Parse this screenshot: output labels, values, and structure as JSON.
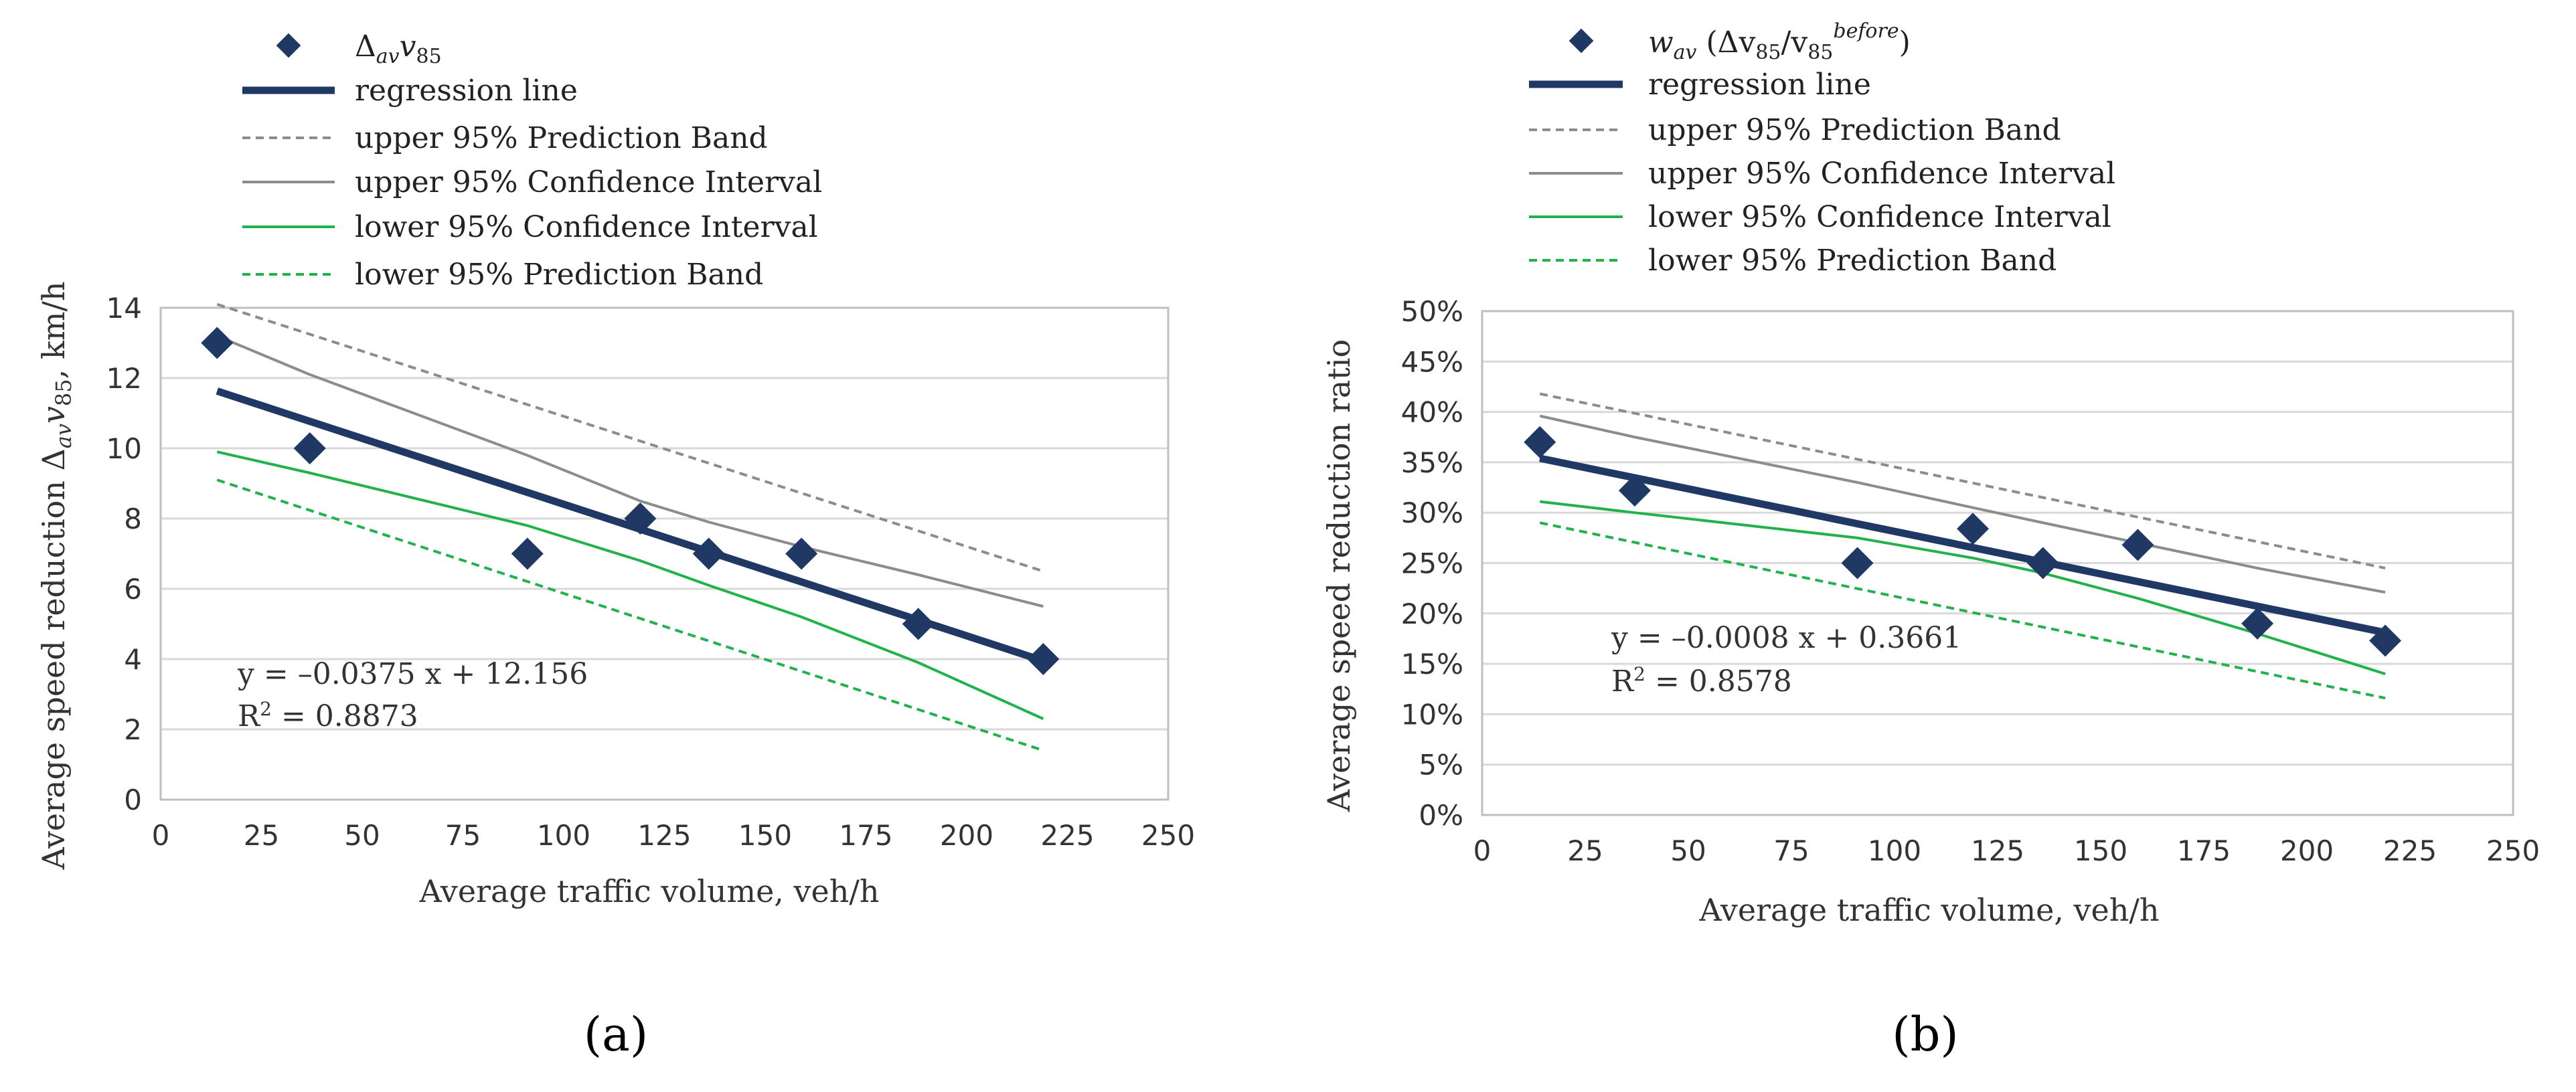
{
  "legend": {
    "a_series_main": "Δ",
    "a_series_sub": "av",
    "a_series_v": "v",
    "a_series_85": "85",
    "b_series_w": "w",
    "b_series_av": "av",
    "b_series_mid": " (Δv",
    "b_series_85a": "85",
    "b_series_slash": "/v",
    "b_series_85b": "85",
    "b_series_before": "before",
    "b_series_close": ")",
    "regression": "regression line",
    "upper_pb": "upper 95% Prediction Band",
    "upper_ci": "upper 95% Confidence Interval",
    "lower_ci": "lower 95% Confidence Interval",
    "lower_pb": "lower 95% Prediction Band"
  },
  "colors": {
    "points": "#1f3864",
    "regression": "#1f3864",
    "upper_pb": "#8c8c8c",
    "upper_ci": "#8c8c8c",
    "lower_ci": "#22b24c",
    "lower_pb": "#22b24c",
    "grid": "#d9d9d9",
    "axis": "#bfbfbf"
  },
  "chart_data": [
    {
      "type": "scatter",
      "panel_label": "(a)",
      "xlabel": "Average traffic volume, veh/h",
      "ylabel_pre": "Average speed reduction Δ",
      "ylabel_sub_av": "av",
      "ylabel_v": "v",
      "ylabel_sub_85": "85",
      "ylabel_post": ", km/h",
      "xlim": [
        0,
        250
      ],
      "ylim": [
        0,
        14
      ],
      "xticks": [
        "0",
        "25",
        "50",
        "75",
        "100",
        "125",
        "150",
        "175",
        "200",
        "225",
        "250"
      ],
      "yticks": [
        "0",
        "2",
        "4",
        "6",
        "8",
        "10",
        "12",
        "14"
      ],
      "x_tick_values": [
        0,
        25,
        50,
        75,
        100,
        125,
        150,
        175,
        200,
        225,
        250
      ],
      "y_tick_values": [
        0,
        2,
        4,
        6,
        8,
        10,
        12,
        14
      ],
      "equation": "y = –0.0375 x + 12.156",
      "r2_prefix": "R",
      "r2_sup": "2",
      "r2_value": " = 0.8873",
      "points": [
        {
          "x": 14,
          "y": 13
        },
        {
          "x": 37,
          "y": 10
        },
        {
          "x": 91,
          "y": 7
        },
        {
          "x": 119,
          "y": 8
        },
        {
          "x": 136,
          "y": 7
        },
        {
          "x": 159,
          "y": 7
        },
        {
          "x": 188,
          "y": 5
        },
        {
          "x": 219,
          "y": 4
        }
      ],
      "series": [
        {
          "key": "regression",
          "x": [
            14,
            219
          ],
          "y": [
            11.63,
            3.95
          ]
        },
        {
          "key": "upper_pb",
          "x": [
            14,
            219
          ],
          "y": [
            14.1,
            6.5
          ]
        },
        {
          "key": "upper_ci",
          "x": [
            14,
            37,
            91,
            119,
            136,
            159,
            188,
            219
          ],
          "y": [
            13.2,
            12.1,
            9.8,
            8.5,
            7.9,
            7.2,
            6.4,
            5.5
          ]
        },
        {
          "key": "lower_ci",
          "x": [
            14,
            37,
            91,
            119,
            136,
            159,
            188,
            219
          ],
          "y": [
            9.9,
            9.3,
            7.8,
            6.8,
            6.1,
            5.2,
            3.9,
            2.3
          ]
        },
        {
          "key": "lower_pb",
          "x": [
            14,
            219
          ],
          "y": [
            9.1,
            1.4
          ]
        }
      ]
    },
    {
      "type": "scatter",
      "panel_label": "(b)",
      "xlabel": "Average traffic volume, veh/h",
      "ylabel": "Average speed reduction ratio",
      "xlim": [
        0,
        250
      ],
      "ylim": [
        0,
        0.5
      ],
      "xticks": [
        "0",
        "25",
        "50",
        "75",
        "100",
        "125",
        "150",
        "175",
        "200",
        "225",
        "250"
      ],
      "yticks": [
        "0%",
        "5%",
        "10%",
        "15%",
        "20%",
        "25%",
        "30%",
        "35%",
        "40%",
        "45%",
        "50%"
      ],
      "x_tick_values": [
        0,
        25,
        50,
        75,
        100,
        125,
        150,
        175,
        200,
        225,
        250
      ],
      "y_tick_values": [
        0,
        0.05,
        0.1,
        0.15,
        0.2,
        0.25,
        0.3,
        0.35,
        0.4,
        0.45,
        0.5
      ],
      "equation": "y = –0.0008 x + 0.3661",
      "r2_prefix": "R",
      "r2_sup": "2",
      "r2_value": " = 0.8578",
      "points": [
        {
          "x": 14,
          "y": 0.37
        },
        {
          "x": 37,
          "y": 0.322
        },
        {
          "x": 91,
          "y": 0.25
        },
        {
          "x": 119,
          "y": 0.284
        },
        {
          "x": 136,
          "y": 0.25
        },
        {
          "x": 159,
          "y": 0.268
        },
        {
          "x": 188,
          "y": 0.19
        },
        {
          "x": 219,
          "y": 0.173
        }
      ],
      "series": [
        {
          "key": "regression",
          "x": [
            14,
            219
          ],
          "y": [
            0.354,
            0.181
          ]
        },
        {
          "key": "upper_pb",
          "x": [
            14,
            219
          ],
          "y": [
            0.418,
            0.245
          ]
        },
        {
          "key": "upper_ci",
          "x": [
            14,
            37,
            91,
            119,
            136,
            159,
            188,
            219
          ],
          "y": [
            0.396,
            0.375,
            0.33,
            0.305,
            0.29,
            0.27,
            0.245,
            0.221
          ]
        },
        {
          "key": "lower_ci",
          "x": [
            14,
            37,
            91,
            119,
            136,
            159,
            188,
            219
          ],
          "y": [
            0.311,
            0.3,
            0.275,
            0.255,
            0.24,
            0.215,
            0.18,
            0.14
          ]
        },
        {
          "key": "lower_pb",
          "x": [
            14,
            219
          ],
          "y": [
            0.29,
            0.116
          ]
        }
      ]
    }
  ]
}
